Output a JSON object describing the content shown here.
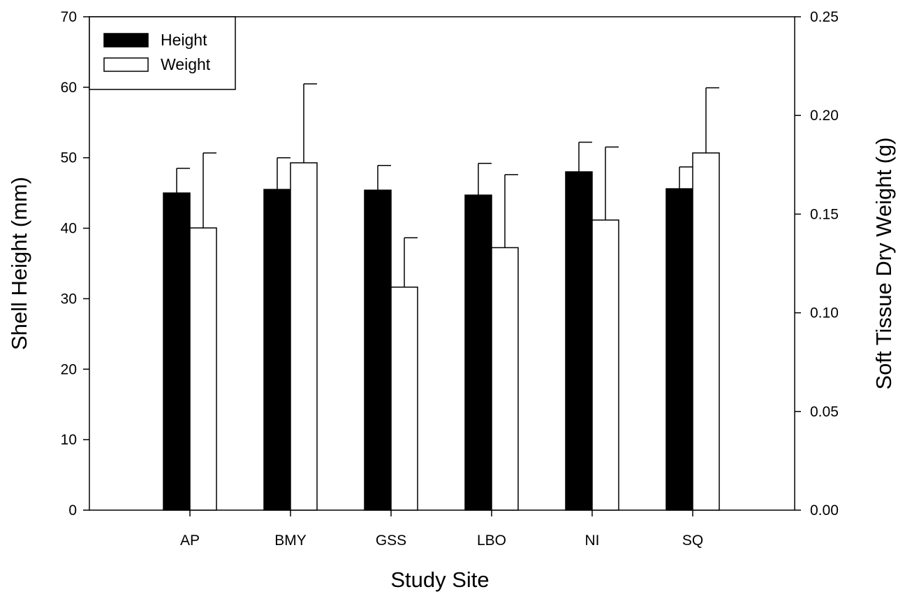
{
  "chart_data": {
    "type": "bar",
    "title": "",
    "xlabel": "Study Site",
    "ylabel": "Shell Height (mm)",
    "y2label": "Soft Tissue Dry Weight (g)",
    "categories": [
      "AP",
      "BMY",
      "GSS",
      "LBO",
      "NI",
      "SQ"
    ],
    "ylim": [
      0,
      70
    ],
    "y2lim": [
      0,
      0.25
    ],
    "yticks": [
      "0",
      "10",
      "20",
      "30",
      "40",
      "50",
      "60",
      "70"
    ],
    "y2ticks": [
      "0.00",
      "0.05",
      "0.10",
      "0.15",
      "0.20",
      "0.25"
    ],
    "grid": false,
    "legend_position": "top-left",
    "series": [
      {
        "name": "Height",
        "axis": "left",
        "color": "#000000",
        "values": [
          45.0,
          45.5,
          45.4,
          44.7,
          48.0,
          45.6
        ],
        "errors": [
          3.5,
          4.5,
          3.5,
          4.5,
          4.2,
          3.1
        ]
      },
      {
        "name": "Weight",
        "axis": "right",
        "color": "#ffffff",
        "values": [
          0.143,
          0.176,
          0.113,
          0.133,
          0.147,
          0.181
        ],
        "errors": [
          0.038,
          0.04,
          0.025,
          0.037,
          0.037,
          0.033
        ]
      }
    ]
  }
}
